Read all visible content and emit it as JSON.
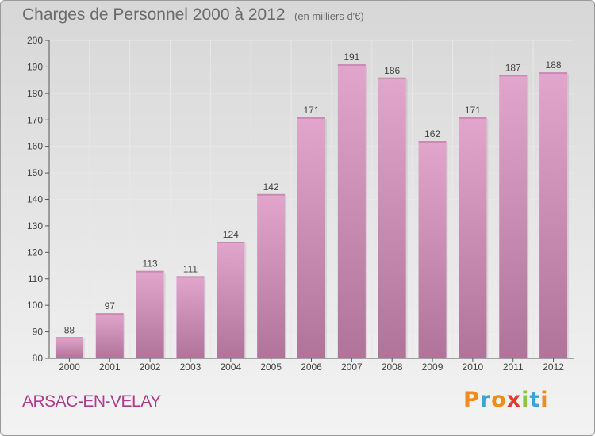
{
  "title": "Charges de Personnel 2000 à 2012",
  "subtitle": "(en milliers d'€)",
  "city": "ARSAC-EN-VELAY",
  "logo": {
    "letters": [
      "P",
      "r",
      "o",
      "x",
      "i",
      "t",
      "i"
    ],
    "colors": [
      "#f08b1c",
      "#3aa3d8",
      "#f08b1c",
      "#e8382e",
      "#8cc63f",
      "#3aa3d8",
      "#f08b1c"
    ]
  },
  "colors": {
    "bar_light": "#e2a6cc",
    "bar_dark": "#b0749a",
    "axis": "#555555",
    "grid": "#e8e8e8"
  },
  "chart_data": {
    "type": "bar",
    "title": "Charges de Personnel 2000 à 2012",
    "subtitle": "(en milliers d'€)",
    "categories": [
      "2000",
      "2001",
      "2002",
      "2003",
      "2004",
      "2005",
      "2006",
      "2007",
      "2008",
      "2009",
      "2010",
      "2011",
      "2012"
    ],
    "values": [
      88,
      97,
      113,
      111,
      124,
      142,
      171,
      191,
      186,
      162,
      171,
      187,
      188
    ],
    "ylim": [
      80,
      200
    ],
    "yticks": [
      80,
      90,
      100,
      110,
      120,
      130,
      140,
      150,
      160,
      170,
      180,
      190,
      200
    ],
    "grid": true,
    "xlabel": "",
    "ylabel": ""
  }
}
